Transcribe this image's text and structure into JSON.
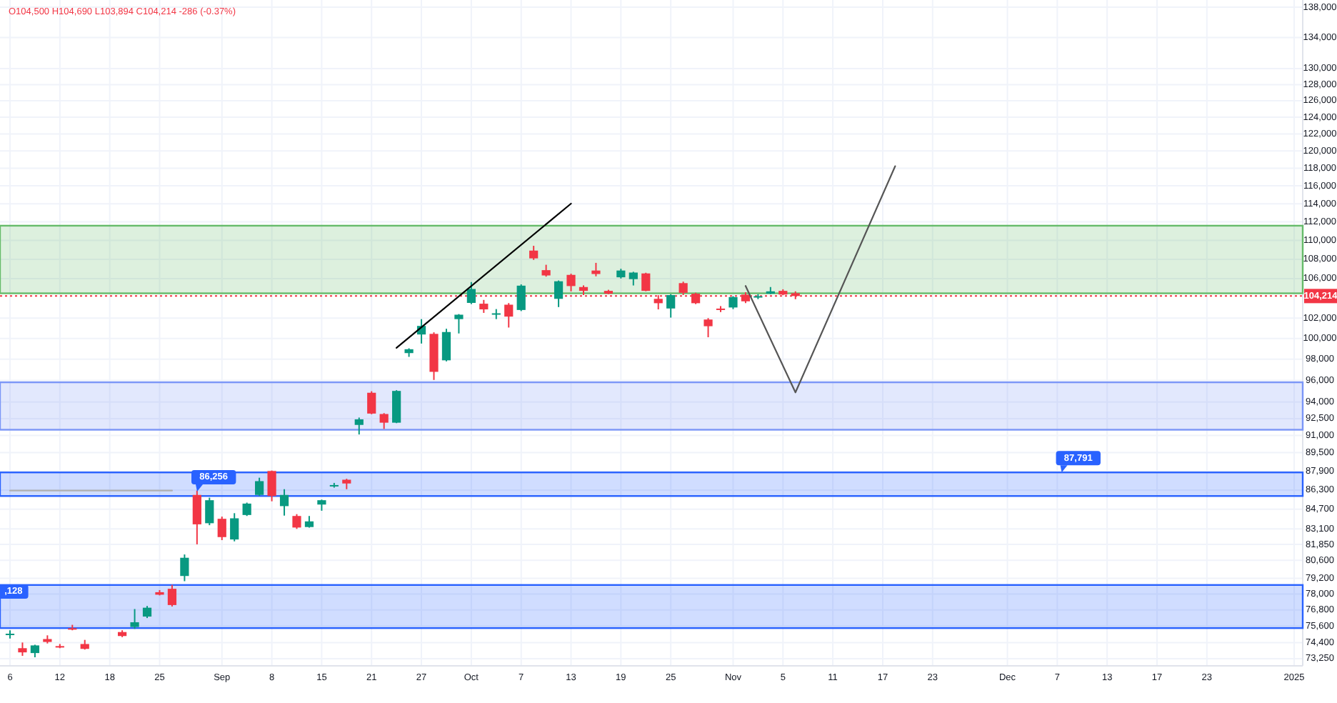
{
  "chart_data": {
    "type": "candlestick",
    "subtitle": "O104,500 H104,690 L103,894 C104,214 -286 (-0.37%)",
    "categories": [
      "6",
      null,
      null,
      null,
      "12",
      null,
      null,
      null,
      "18",
      null,
      null,
      null,
      "25",
      null,
      null,
      null,
      null,
      "Sep",
      null,
      null,
      null,
      "8",
      null,
      null,
      null,
      "15",
      null,
      null,
      null,
      "21",
      null,
      null,
      null,
      "27",
      null,
      null,
      null,
      "Oct",
      null,
      null,
      null,
      "7",
      null,
      null,
      null,
      "13",
      null,
      null,
      null,
      "19",
      null,
      null,
      null,
      "25",
      null,
      null,
      null,
      null,
      "Nov",
      null,
      null,
      null,
      "5",
      null,
      null,
      null,
      "11",
      null,
      null,
      null,
      "17",
      null,
      null,
      null,
      "23",
      null,
      null,
      null,
      null,
      null,
      "Dec",
      null,
      null,
      null,
      "7",
      null,
      null,
      null,
      "13",
      null,
      null,
      null,
      "17",
      null,
      null,
      null,
      "23",
      null,
      null,
      null,
      null,
      null,
      null,
      "2025"
    ],
    "ohlc": [
      [
        74950,
        75300,
        74700,
        75050
      ],
      [
        74000,
        74410,
        73450,
        73700
      ],
      [
        73650,
        74250,
        73350,
        74200
      ],
      [
        74660,
        74930,
        74340,
        74450
      ],
      [
        74150,
        74300,
        74000,
        74100
      ],
      [
        75450,
        75700,
        75300,
        75400
      ],
      [
        74300,
        74600,
        73900,
        73950
      ],
      null,
      null,
      [
        75170,
        75300,
        74800,
        74880
      ],
      [
        75540,
        76870,
        75400,
        75890
      ],
      [
        76310,
        77100,
        76200,
        76970
      ],
      [
        78140,
        78300,
        77900,
        77950
      ],
      [
        78400,
        78700,
        77060,
        77170
      ],
      [
        79380,
        81060,
        78980,
        80800
      ],
      [
        85890,
        86256,
        81860,
        83470
      ],
      [
        83560,
        85660,
        83400,
        85450
      ],
      [
        83920,
        84100,
        82200,
        82440
      ],
      [
        82250,
        84380,
        82100,
        83960
      ],
      [
        84230,
        85250,
        84150,
        85170
      ],
      [
        85890,
        87340,
        85800,
        87050
      ],
      [
        87910,
        87950,
        85360,
        85800
      ],
      [
        84960,
        86370,
        84180,
        85890
      ],
      [
        84150,
        84300,
        83100,
        83210
      ],
      [
        83250,
        84150,
        83200,
        83710
      ],
      [
        85090,
        85500,
        84580,
        85450
      ],
      [
        86650,
        86900,
        86500,
        86720
      ],
      [
        87170,
        87250,
        86370,
        86850
      ],
      [
        91940,
        92600,
        91090,
        92440
      ],
      [
        94860,
        95000,
        92900,
        92960
      ],
      [
        92920,
        93000,
        91580,
        92140
      ],
      [
        92140,
        95100,
        92100,
        95030
      ],
      [
        98590,
        99050,
        98230,
        98960
      ],
      [
        100390,
        101900,
        99510,
        101230
      ],
      [
        100450,
        100600,
        96050,
        96810
      ],
      [
        97900,
        100950,
        97800,
        100630
      ],
      [
        101900,
        102400,
        100490,
        102340
      ],
      [
        103520,
        105640,
        103400,
        104930
      ],
      [
        103440,
        103820,
        102520,
        102870
      ],
      [
        102400,
        102900,
        101900,
        102480
      ],
      [
        103340,
        103500,
        101070,
        102150
      ],
      [
        102810,
        105400,
        102700,
        105270
      ],
      [
        108920,
        109430,
        107940,
        108100
      ],
      [
        106870,
        107430,
        106200,
        106320
      ],
      [
        103930,
        105800,
        103100,
        105720
      ],
      [
        106380,
        106500,
        104690,
        105230
      ],
      [
        105130,
        105300,
        104310,
        104740
      ],
      [
        106830,
        107630,
        106230,
        106470
      ],
      [
        104740,
        104850,
        104400,
        104450
      ],
      [
        106130,
        107010,
        106000,
        106830
      ],
      [
        105940,
        106700,
        105290,
        106620
      ],
      [
        106530,
        106600,
        104700,
        104740
      ],
      [
        103930,
        104300,
        102870,
        103490
      ],
      [
        102960,
        104400,
        102050,
        104310
      ],
      [
        105530,
        105680,
        104310,
        104540
      ],
      [
        104450,
        104550,
        103400,
        103490
      ],
      [
        101860,
        102000,
        100120,
        101200
      ],
      [
        102950,
        103200,
        102600,
        102900
      ],
      [
        103060,
        104200,
        102900,
        104110
      ],
      [
        104360,
        104600,
        103500,
        103680
      ],
      [
        104100,
        104400,
        103900,
        104200
      ],
      [
        104450,
        105130,
        104400,
        104690
      ],
      [
        104740,
        104900,
        104300,
        104360
      ],
      [
        104500,
        104690,
        103894,
        104214
      ],
      null,
      null,
      null,
      null,
      null,
      null,
      null,
      null,
      null,
      null,
      null,
      null,
      null,
      null,
      null,
      null,
      null,
      null,
      null,
      null,
      null,
      null,
      null,
      null,
      null,
      null,
      null,
      null,
      null,
      null,
      null,
      null,
      null,
      null,
      null,
      null,
      null,
      null,
      null,
      null
    ],
    "series": [
      {
        "type": "line",
        "color": "#b0b0b0",
        "values": [
          86256,
          null,
          null,
          null,
          null,
          null,
          null,
          null,
          null,
          null,
          null,
          null,
          null,
          86256,
          null,
          null,
          null,
          null,
          null,
          null,
          null,
          null,
          null,
          null,
          null,
          null,
          null,
          null,
          null,
          null,
          null,
          null,
          null,
          null,
          null,
          null,
          null,
          null,
          null,
          null,
          null,
          null,
          null,
          null,
          null,
          null,
          null,
          null,
          null,
          null,
          null,
          null,
          null,
          null,
          null,
          null,
          null,
          null,
          null,
          null,
          null,
          null,
          null,
          null,
          null,
          null,
          null,
          null,
          null,
          null,
          null,
          null,
          null,
          null,
          null,
          null,
          null,
          null,
          null,
          null,
          null,
          null,
          null,
          null,
          null,
          null,
          null,
          null,
          null,
          null,
          null,
          null,
          null,
          null,
          null,
          null,
          null,
          null,
          null,
          null,
          null,
          null,
          null,
          null
        ]
      },
      {
        "type": "line",
        "color": "#000000",
        "values": [
          null,
          null,
          null,
          null,
          null,
          null,
          null,
          null,
          null,
          null,
          null,
          null,
          null,
          null,
          null,
          null,
          null,
          null,
          null,
          null,
          null,
          null,
          null,
          null,
          null,
          null,
          null,
          null,
          null,
          null,
          null,
          99090,
          null,
          null,
          null,
          null,
          null,
          null,
          null,
          null,
          null,
          null,
          null,
          null,
          null,
          114010,
          null,
          null,
          null,
          null,
          null,
          null,
          null,
          null,
          null,
          null,
          null,
          null,
          null,
          null,
          null,
          null,
          null,
          null,
          null,
          null,
          null,
          null,
          null,
          null,
          null,
          null,
          null,
          null,
          null,
          null,
          null,
          null,
          null,
          null,
          null,
          null,
          null,
          null,
          null,
          null,
          null,
          null,
          null,
          null,
          null,
          null,
          null,
          null,
          null,
          null,
          null,
          null,
          null,
          null,
          null,
          null,
          null,
          null
        ]
      },
      {
        "type": "line",
        "color": "#555555",
        "values": [
          null,
          null,
          null,
          null,
          null,
          null,
          null,
          null,
          null,
          null,
          null,
          null,
          null,
          null,
          null,
          null,
          null,
          null,
          null,
          null,
          null,
          null,
          null,
          null,
          null,
          null,
          null,
          null,
          null,
          null,
          null,
          null,
          null,
          null,
          null,
          null,
          null,
          null,
          null,
          null,
          null,
          null,
          null,
          null,
          null,
          null,
          null,
          null,
          null,
          null,
          null,
          null,
          null,
          null,
          null,
          null,
          null,
          null,
          null,
          105240,
          null,
          null,
          null,
          94890,
          null,
          null,
          null,
          null,
          null,
          null,
          null,
          118240,
          null,
          null,
          null,
          null,
          null,
          null,
          null,
          null,
          null,
          null,
          null,
          null,
          null,
          null,
          null,
          null,
          null,
          null,
          null,
          null,
          null,
          null,
          null,
          null,
          null,
          null,
          null,
          null,
          null,
          null,
          null,
          null
        ]
      }
    ],
    "bands": [
      {
        "axis": "y",
        "from": 104490,
        "to": 111590,
        "color": "#66bb6a"
      },
      {
        "axis": "y",
        "from": 91510,
        "to": 95830,
        "color": "#7b96f7"
      },
      {
        "axis": "y",
        "from": 85800,
        "to": 87791,
        "color": "#2962ff"
      },
      {
        "axis": "y",
        "from": 75460,
        "to": 78690,
        "color": "#2962ff"
      }
    ],
    "annotations": [
      "86,256",
      {
        "text": "87,791",
        "y": 87791
      },
      ",128"
    ],
    "ref_lines": [
      {
        "axis": "y",
        "value": 104214,
        "label": "104,214",
        "color": "#f23645",
        "line_style": "dotted"
      }
    ],
    "log": true,
    "grid": true,
    "ylim": [
      72740,
      138970
    ],
    "yticks": [
      {
        "value": 73250,
        "label": "73,250"
      },
      {
        "value": 74400,
        "label": "74,400"
      },
      {
        "value": 75600,
        "label": "75,600"
      },
      {
        "value": 76800,
        "label": "76,800"
      },
      {
        "value": 78000,
        "label": "78,000"
      },
      {
        "value": 79200,
        "label": "79,200"
      },
      {
        "value": 80600,
        "label": "80,600"
      },
      {
        "value": 81850,
        "label": "81,850"
      },
      {
        "value": 83100,
        "label": "83,100"
      },
      {
        "value": 84700,
        "label": "84,700"
      },
      {
        "value": 86300,
        "label": "86,300"
      },
      {
        "value": 87900,
        "label": "87,900"
      },
      {
        "value": 89500,
        "label": "89,500"
      },
      {
        "value": 91000,
        "label": "91,000"
      },
      {
        "value": 92500,
        "label": "92,500"
      },
      {
        "value": 94000,
        "label": "94,000"
      },
      {
        "value": 96000,
        "label": "96,000"
      },
      {
        "value": 98000,
        "label": "98,000"
      },
      {
        "value": 100000,
        "label": "100,000"
      },
      {
        "value": 102000,
        "label": "102,000"
      },
      {
        "value": 106000,
        "label": "106,000"
      },
      {
        "value": 108000,
        "label": "108,000"
      },
      {
        "value": 110000,
        "label": "110,000"
      },
      {
        "value": 112000,
        "label": "112,000"
      },
      {
        "value": 114000,
        "label": "114,000"
      },
      {
        "value": 116000,
        "label": "116,000"
      },
      {
        "value": 118000,
        "label": "118,000"
      },
      {
        "value": 120000,
        "label": "120,000"
      },
      {
        "value": 122000,
        "label": "122,000"
      },
      {
        "value": 124000,
        "label": "124,000"
      },
      {
        "value": 126000,
        "label": "126,000"
      },
      {
        "value": 128000,
        "label": "128,000"
      },
      {
        "value": 130000,
        "label": "130,000"
      },
      {
        "value": 134000,
        "label": "134,000"
      },
      {
        "value": 138000,
        "label": "138,000"
      }
    ]
  }
}
